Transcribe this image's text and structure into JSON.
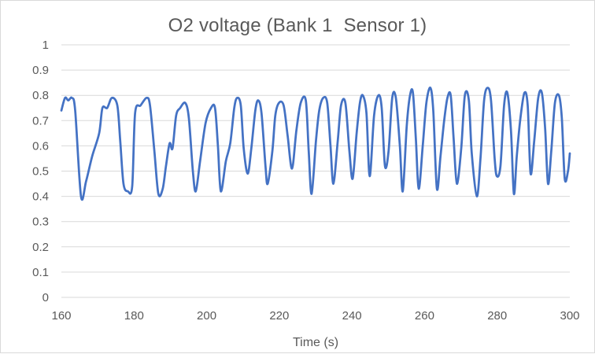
{
  "chart_data": {
    "type": "line",
    "title": "O2 voltage (Bank 1  Sensor 1)",
    "xlabel": "Time (s)",
    "ylabel": "",
    "xlim": [
      160,
      300
    ],
    "ylim": [
      0,
      1
    ],
    "xticks": [
      "160",
      "180",
      "200",
      "220",
      "240",
      "260",
      "280",
      "300"
    ],
    "yticks": [
      "0",
      "0.1",
      "0.2",
      "0.3",
      "0.4",
      "0.5",
      "0.6",
      "0.7",
      "0.8",
      "0.9",
      "1"
    ],
    "grid": "horizontal",
    "legend": "none",
    "series": [
      {
        "color": "#4472c4",
        "points": [
          [
            160.0,
            0.74
          ],
          [
            161.0,
            0.79
          ],
          [
            161.9,
            0.78
          ],
          [
            162.9,
            0.79
          ],
          [
            163.8,
            0.74
          ],
          [
            165.4,
            0.4
          ],
          [
            166.8,
            0.46
          ],
          [
            168.5,
            0.56
          ],
          [
            170.4,
            0.65
          ],
          [
            171.3,
            0.75
          ],
          [
            172.6,
            0.75
          ],
          [
            173.9,
            0.79
          ],
          [
            175.4,
            0.76
          ],
          [
            176.2,
            0.62
          ],
          [
            177.1,
            0.45
          ],
          [
            178.3,
            0.42
          ],
          [
            179.5,
            0.44
          ],
          [
            180.3,
            0.73
          ],
          [
            181.8,
            0.76
          ],
          [
            183.5,
            0.79
          ],
          [
            184.4,
            0.76
          ],
          [
            185.6,
            0.58
          ],
          [
            186.7,
            0.41
          ],
          [
            187.9,
            0.43
          ],
          [
            188.8,
            0.52
          ],
          [
            189.8,
            0.61
          ],
          [
            190.6,
            0.59
          ],
          [
            191.6,
            0.72
          ],
          [
            192.7,
            0.75
          ],
          [
            194.1,
            0.77
          ],
          [
            195.1,
            0.71
          ],
          [
            196.2,
            0.5
          ],
          [
            197.0,
            0.42
          ],
          [
            198.2,
            0.54
          ],
          [
            199.7,
            0.69
          ],
          [
            201.2,
            0.75
          ],
          [
            202.3,
            0.75
          ],
          [
            203.1,
            0.6
          ],
          [
            203.9,
            0.42
          ],
          [
            205.3,
            0.54
          ],
          [
            206.5,
            0.61
          ],
          [
            207.6,
            0.75
          ],
          [
            208.4,
            0.79
          ],
          [
            209.4,
            0.76
          ],
          [
            210.2,
            0.59
          ],
          [
            211.3,
            0.49
          ],
          [
            212.3,
            0.59
          ],
          [
            213.4,
            0.74
          ],
          [
            214.2,
            0.78
          ],
          [
            215.1,
            0.73
          ],
          [
            216.2,
            0.52
          ],
          [
            216.8,
            0.45
          ],
          [
            218.1,
            0.58
          ],
          [
            218.9,
            0.72
          ],
          [
            219.9,
            0.77
          ],
          [
            221.2,
            0.76
          ],
          [
            222.3,
            0.64
          ],
          [
            223.5,
            0.51
          ],
          [
            224.7,
            0.66
          ],
          [
            225.9,
            0.77
          ],
          [
            227.3,
            0.78
          ],
          [
            228.1,
            0.58
          ],
          [
            228.9,
            0.41
          ],
          [
            230.1,
            0.62
          ],
          [
            231.0,
            0.74
          ],
          [
            232.1,
            0.79
          ],
          [
            233.2,
            0.77
          ],
          [
            234.1,
            0.6
          ],
          [
            234.9,
            0.45
          ],
          [
            236.1,
            0.62
          ],
          [
            237.0,
            0.76
          ],
          [
            238.2,
            0.77
          ],
          [
            239.3,
            0.58
          ],
          [
            240.2,
            0.47
          ],
          [
            241.3,
            0.65
          ],
          [
            242.2,
            0.77
          ],
          [
            243.0,
            0.8
          ],
          [
            244.0,
            0.73
          ],
          [
            244.9,
            0.48
          ],
          [
            246.1,
            0.72
          ],
          [
            247.3,
            0.8
          ],
          [
            248.2,
            0.75
          ],
          [
            249.1,
            0.52
          ],
          [
            250.1,
            0.58
          ],
          [
            251.1,
            0.79
          ],
          [
            252.1,
            0.79
          ],
          [
            253.2,
            0.6
          ],
          [
            254.0,
            0.42
          ],
          [
            255.1,
            0.68
          ],
          [
            256.0,
            0.8
          ],
          [
            256.8,
            0.81
          ],
          [
            257.6,
            0.63
          ],
          [
            258.4,
            0.43
          ],
          [
            259.5,
            0.6
          ],
          [
            260.5,
            0.77
          ],
          [
            261.6,
            0.83
          ],
          [
            262.4,
            0.74
          ],
          [
            263.4,
            0.43
          ],
          [
            264.4,
            0.56
          ],
          [
            265.4,
            0.7
          ],
          [
            266.3,
            0.79
          ],
          [
            267.2,
            0.8
          ],
          [
            268.0,
            0.63
          ],
          [
            268.9,
            0.45
          ],
          [
            270.1,
            0.59
          ],
          [
            271.1,
            0.8
          ],
          [
            272.2,
            0.78
          ],
          [
            273.0,
            0.57
          ],
          [
            274.4,
            0.4
          ],
          [
            275.4,
            0.55
          ],
          [
            276.4,
            0.78
          ],
          [
            277.4,
            0.83
          ],
          [
            278.3,
            0.78
          ],
          [
            279.3,
            0.55
          ],
          [
            279.9,
            0.48
          ],
          [
            280.9,
            0.52
          ],
          [
            281.9,
            0.76
          ],
          [
            282.8,
            0.81
          ],
          [
            283.8,
            0.66
          ],
          [
            284.6,
            0.41
          ],
          [
            285.4,
            0.56
          ],
          [
            286.4,
            0.71
          ],
          [
            287.5,
            0.81
          ],
          [
            288.4,
            0.76
          ],
          [
            289.2,
            0.49
          ],
          [
            290.2,
            0.62
          ],
          [
            291.3,
            0.79
          ],
          [
            292.3,
            0.81
          ],
          [
            293.2,
            0.67
          ],
          [
            294.0,
            0.45
          ],
          [
            294.9,
            0.58
          ],
          [
            295.9,
            0.77
          ],
          [
            297.0,
            0.8
          ],
          [
            297.8,
            0.71
          ],
          [
            298.6,
            0.47
          ],
          [
            299.5,
            0.5
          ],
          [
            300.0,
            0.57
          ]
        ]
      }
    ]
  }
}
